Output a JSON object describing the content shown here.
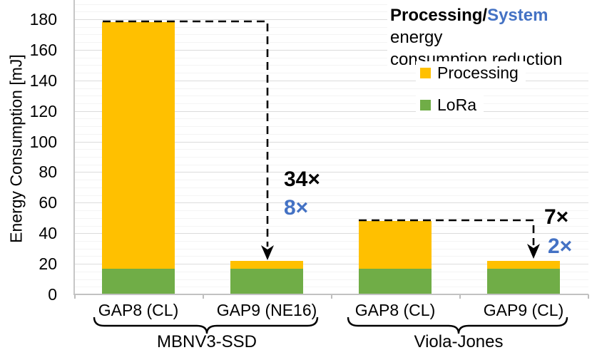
{
  "colors": {
    "accent_blue": "#4472C4",
    "processing_yellow": "#FFC000",
    "lora_green": "#70AD47",
    "grid_major": "#dcdcdc",
    "grid_minor": "#f4f4f4"
  },
  "note": {
    "bold_black": "Processing",
    "slash": "/",
    "bold_blue": "System",
    "line1_tail": " energy",
    "line2": "consumption reduction"
  },
  "chart_data": {
    "type": "bar",
    "stacked": true,
    "title": "Processing/System energy consumption reduction",
    "ylabel": "Energy Consumption [mJ]",
    "ylim": [
      0,
      192
    ],
    "y_major_ticks": [
      0,
      20,
      40,
      60,
      80,
      100,
      120,
      140,
      160,
      180
    ],
    "y_minor_step": 5,
    "grid": "on",
    "legend_position": "top-right",
    "categories": [
      "GAP8 (CL)",
      "GAP9 (NE16)",
      "GAP8 (CL)",
      "GAP9 (CL)"
    ],
    "groups": [
      {
        "label": "MBNV3-SSD",
        "bars": [
          0,
          1
        ]
      },
      {
        "label": "Viola-Jones",
        "bars": [
          2,
          3
        ]
      }
    ],
    "series": [
      {
        "name": "LoRa",
        "color": "#70AD47",
        "values": [
          17,
          17,
          17,
          17
        ]
      },
      {
        "name": "Processing",
        "color": "#FFC000",
        "values": [
          161,
          5,
          31,
          5
        ]
      }
    ],
    "bar_totals": [
      178,
      22,
      48,
      22
    ],
    "legend": [
      {
        "label": "Processing",
        "color": "#FFC000"
      },
      {
        "label": "LoRa",
        "color": "#70AD47"
      }
    ],
    "annotations": [
      {
        "text": "34×",
        "color": "#000000"
      },
      {
        "text": "8×",
        "color": "#4472C4"
      },
      {
        "text": "7×",
        "color": "#000000"
      },
      {
        "text": "2×",
        "color": "#4472C4"
      }
    ]
  }
}
